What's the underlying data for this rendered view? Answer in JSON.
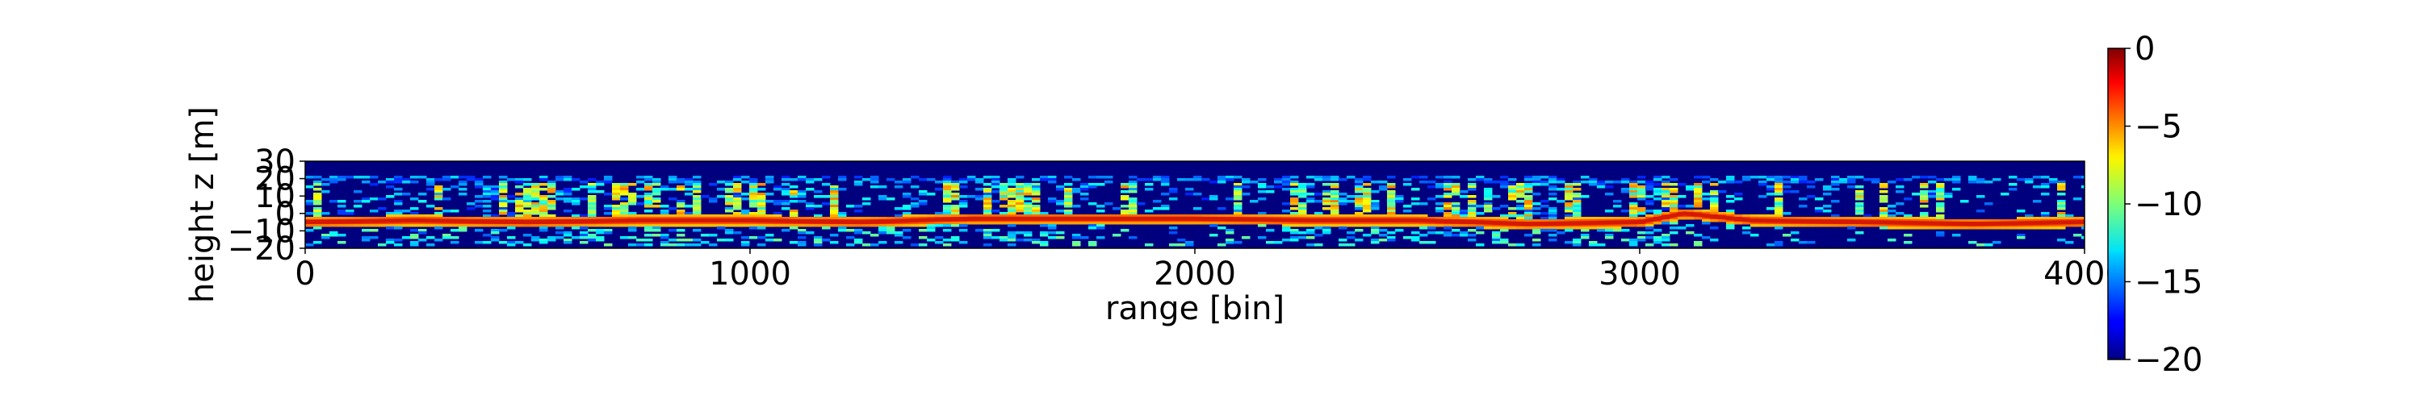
{
  "chart_data": {
    "type": "heatmap",
    "xlabel": "range [bin]",
    "ylabel": "height z [m]",
    "xlim": [
      0,
      4000
    ],
    "ylim": [
      -20,
      30
    ],
    "x_ticks": [
      0,
      1000,
      2000,
      3000,
      4000
    ],
    "x_tick_labels": [
      "0",
      "1000",
      "2000",
      "3000",
      "4000"
    ],
    "y_ticks": [
      -20,
      -10,
      0,
      10,
      20,
      30
    ],
    "y_tick_labels": [
      "−20",
      "−10",
      "0",
      "10",
      "20",
      "30"
    ],
    "colormap": "jet",
    "colorbar": {
      "vmin": -20,
      "vmax": 0,
      "ticks": [
        0,
        -5,
        -10,
        -15,
        -20
      ],
      "tick_labels": [
        "0",
        "−5",
        "−10",
        "−15",
        "−20"
      ]
    },
    "ground_track_bins": [
      0,
      250,
      500,
      750,
      1000,
      1250,
      1500,
      1750,
      2000,
      2250,
      2500,
      2750,
      3000,
      3100,
      3250,
      3500,
      3750,
      4000
    ],
    "ground_track_height_m": [
      -5,
      -4,
      -5,
      -4,
      -4,
      -5,
      -3,
      -3,
      -3,
      -4,
      -4,
      -6,
      -5,
      0,
      -4,
      -5,
      -6,
      -5
    ]
  }
}
